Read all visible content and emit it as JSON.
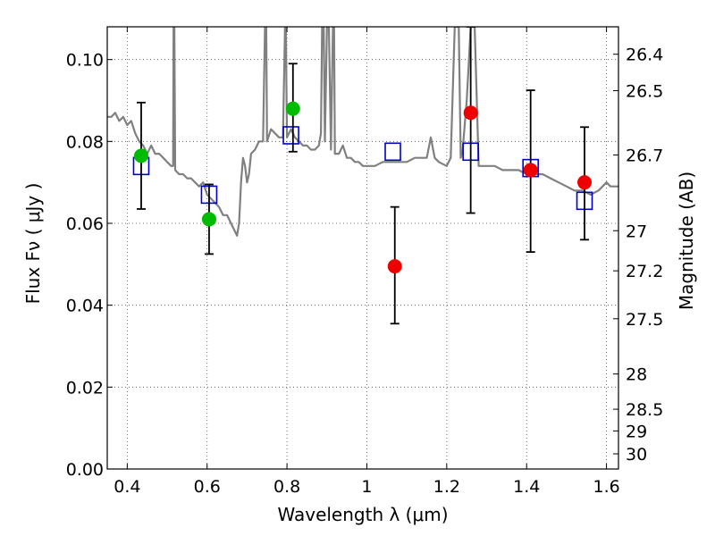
{
  "chart_data": {
    "type": "scatter",
    "title": "",
    "xlabel": "Wavelength  λ (μm)",
    "ylabel": "Flux  Fν  ( μJy )",
    "y2label": "Magnitude (AB)",
    "xlim": [
      0.35,
      1.63
    ],
    "ylim": [
      0.0,
      0.108
    ],
    "x_ticks": [
      0.4,
      0.6,
      0.8,
      1.0,
      1.2,
      1.4,
      1.6
    ],
    "x_tick_labels": [
      "0.4",
      "0.6",
      "0.8",
      "1",
      "1.2",
      "1.4",
      "1.6"
    ],
    "y_ticks": [
      0.0,
      0.02,
      0.04,
      0.06,
      0.08,
      0.1
    ],
    "y_tick_labels": [
      "0.00",
      "0.02",
      "0.04",
      "0.06",
      "0.08",
      "0.10"
    ],
    "y2_ticks": [
      {
        "label": "26.4",
        "flux": 0.1013
      },
      {
        "label": "26.5",
        "flux": 0.0924
      },
      {
        "label": "26.7",
        "flux": 0.0767
      },
      {
        "label": "27",
        "flux": 0.0582
      },
      {
        "label": "27.2",
        "flux": 0.0484
      },
      {
        "label": "27.5",
        "flux": 0.0367
      },
      {
        "label": "28",
        "flux": 0.0232
      },
      {
        "label": "28.5",
        "flux": 0.0146
      },
      {
        "label": "29",
        "flux": 0.0093
      },
      {
        "label": "30",
        "flux": 0.0037
      }
    ],
    "grid": true,
    "series": [
      {
        "kind": "line",
        "color": "#808080",
        "points": [
          [
            0.35,
            0.086
          ],
          [
            0.36,
            0.086
          ],
          [
            0.37,
            0.087
          ],
          [
            0.38,
            0.085
          ],
          [
            0.39,
            0.086
          ],
          [
            0.4,
            0.084
          ],
          [
            0.41,
            0.085
          ],
          [
            0.42,
            0.082
          ],
          [
            0.43,
            0.08
          ],
          [
            0.44,
            0.079
          ],
          [
            0.45,
            0.077
          ],
          [
            0.46,
            0.079
          ],
          [
            0.47,
            0.077
          ],
          [
            0.48,
            0.077
          ],
          [
            0.49,
            0.076
          ],
          [
            0.5,
            0.075
          ],
          [
            0.51,
            0.074
          ],
          [
            0.515,
            0.074
          ],
          [
            0.516,
            0.108
          ],
          [
            0.518,
            0.108
          ],
          [
            0.52,
            0.073
          ],
          [
            0.53,
            0.072
          ],
          [
            0.54,
            0.072
          ],
          [
            0.55,
            0.071
          ],
          [
            0.56,
            0.071
          ],
          [
            0.57,
            0.07
          ],
          [
            0.58,
            0.069
          ],
          [
            0.59,
            0.07
          ],
          [
            0.6,
            0.067
          ],
          [
            0.61,
            0.066
          ],
          [
            0.62,
            0.065
          ],
          [
            0.63,
            0.064
          ],
          [
            0.64,
            0.062
          ],
          [
            0.65,
            0.062
          ],
          [
            0.66,
            0.06
          ],
          [
            0.67,
            0.058
          ],
          [
            0.675,
            0.057
          ],
          [
            0.68,
            0.06
          ],
          [
            0.685,
            0.07
          ],
          [
            0.69,
            0.076
          ],
          [
            0.695,
            0.074
          ],
          [
            0.7,
            0.07
          ],
          [
            0.705,
            0.072
          ],
          [
            0.71,
            0.077
          ],
          [
            0.72,
            0.078
          ],
          [
            0.73,
            0.08
          ],
          [
            0.74,
            0.08
          ],
          [
            0.745,
            0.108
          ],
          [
            0.748,
            0.108
          ],
          [
            0.75,
            0.08
          ],
          [
            0.76,
            0.083
          ],
          [
            0.77,
            0.082
          ],
          [
            0.78,
            0.081
          ],
          [
            0.79,
            0.081
          ],
          [
            0.795,
            0.108
          ],
          [
            0.797,
            0.108
          ],
          [
            0.8,
            0.081
          ],
          [
            0.81,
            0.083
          ],
          [
            0.82,
            0.081
          ],
          [
            0.83,
            0.08
          ],
          [
            0.84,
            0.079
          ],
          [
            0.85,
            0.079
          ],
          [
            0.86,
            0.078
          ],
          [
            0.87,
            0.078
          ],
          [
            0.88,
            0.079
          ],
          [
            0.885,
            0.082
          ],
          [
            0.888,
            0.108
          ],
          [
            0.892,
            0.108
          ],
          [
            0.895,
            0.08
          ],
          [
            0.9,
            0.108
          ],
          [
            0.905,
            0.108
          ],
          [
            0.91,
            0.078
          ],
          [
            0.915,
            0.108
          ],
          [
            0.918,
            0.108
          ],
          [
            0.92,
            0.077
          ],
          [
            0.93,
            0.077
          ],
          [
            0.94,
            0.079
          ],
          [
            0.95,
            0.076
          ],
          [
            0.96,
            0.076
          ],
          [
            0.97,
            0.075
          ],
          [
            0.98,
            0.075
          ],
          [
            0.99,
            0.074
          ],
          [
            1.0,
            0.074
          ],
          [
            1.02,
            0.074
          ],
          [
            1.04,
            0.075
          ],
          [
            1.06,
            0.075
          ],
          [
            1.08,
            0.075
          ],
          [
            1.1,
            0.075
          ],
          [
            1.12,
            0.076
          ],
          [
            1.15,
            0.076
          ],
          [
            1.16,
            0.081
          ],
          [
            1.17,
            0.076
          ],
          [
            1.18,
            0.075
          ],
          [
            1.2,
            0.074
          ],
          [
            1.21,
            0.076
          ],
          [
            1.22,
            0.108
          ],
          [
            1.23,
            0.108
          ],
          [
            1.235,
            0.076
          ],
          [
            1.24,
            0.078
          ],
          [
            1.25,
            0.09
          ],
          [
            1.26,
            0.108
          ],
          [
            1.27,
            0.108
          ],
          [
            1.28,
            0.074
          ],
          [
            1.3,
            0.074
          ],
          [
            1.32,
            0.074
          ],
          [
            1.34,
            0.073
          ],
          [
            1.36,
            0.073
          ],
          [
            1.38,
            0.073
          ],
          [
            1.4,
            0.072
          ],
          [
            1.42,
            0.072
          ],
          [
            1.44,
            0.072
          ],
          [
            1.46,
            0.071
          ],
          [
            1.48,
            0.07
          ],
          [
            1.5,
            0.069
          ],
          [
            1.52,
            0.068
          ],
          [
            1.54,
            0.068
          ],
          [
            1.56,
            0.067
          ],
          [
            1.58,
            0.068
          ],
          [
            1.6,
            0.07
          ],
          [
            1.61,
            0.069
          ],
          [
            1.63,
            0.069
          ]
        ]
      },
      {
        "kind": "model_boxes",
        "color": "#0000cc",
        "x": [
          0.435,
          0.605,
          0.81,
          1.065,
          1.26,
          1.41,
          1.545
        ],
        "y": [
          0.074,
          0.067,
          0.0815,
          0.0775,
          0.0775,
          0.0735,
          0.0655
        ]
      },
      {
        "kind": "points_with_error",
        "color": "#00bb00",
        "x": [
          0.435,
          0.605,
          0.815
        ],
        "y": [
          0.0765,
          0.061,
          0.088
        ],
        "yerr_low": [
          0.0635,
          0.0525,
          0.0775
        ],
        "yerr_high": [
          0.0895,
          0.0695,
          0.099
        ]
      },
      {
        "kind": "points_with_error",
        "color": "#ee0000",
        "x": [
          1.07,
          1.26,
          1.41,
          1.545
        ],
        "y": [
          0.0495,
          0.087,
          0.073,
          0.07
        ],
        "yerr_low": [
          0.0355,
          0.0625,
          0.053,
          0.056
        ],
        "yerr_high": [
          0.064,
          0.108,
          0.0925,
          0.0835
        ]
      }
    ]
  }
}
